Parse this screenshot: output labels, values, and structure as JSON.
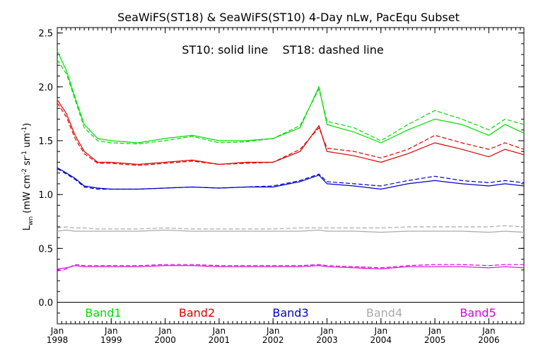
{
  "chart_data": {
    "type": "line",
    "title": "SeaWiFS(ST18) & SeaWiFS(ST10) 4-Day nLw, PacEqu Subset",
    "annotation": "ST10: solid line    ST18: dashed line",
    "ylabel": "L_wn (mW cm-2 sr-1 um-1)",
    "ylabel_main": "L",
    "ylabel_sub": "wn",
    "ylabel_rest": " (mW cm",
    "ylabel_sup1": "-2",
    "ylabel_mid": " sr",
    "ylabel_sup2": "-1",
    "ylabel_mid2": " um",
    "ylabel_sup3": "-1",
    "ylabel_end": ")",
    "xlabel": "",
    "ylim": [
      -0.2,
      2.55
    ],
    "xlim": [
      1998.0,
      2006.65
    ],
    "y_ticks": [
      0.0,
      0.5,
      1.0,
      1.5,
      2.0,
      2.5
    ],
    "y_tick_labels": [
      "0.0",
      "0.5",
      "1.0",
      "1.5",
      "2.0",
      "2.5"
    ],
    "x_ticks": [
      1998,
      1999,
      2000,
      2001,
      2002,
      2003,
      2004,
      2005,
      2006
    ],
    "x_tick_month": "Jan",
    "x_tick_years": [
      "1998",
      "1999",
      "2000",
      "2001",
      "2002",
      "2003",
      "2004",
      "2005",
      "2006"
    ],
    "grid": false,
    "legend_placement": "bottom",
    "colors": {
      "Band1": "#00dd00",
      "Band2": "#dd0000",
      "Band3": "#0000cc",
      "Band4": "#aaaaaa",
      "Band5": "#dd00dd",
      "axis": "#000000"
    },
    "series": [
      {
        "name": "Band1",
        "color": "#00dd00",
        "x": [
          1998.0,
          1998.17,
          1998.33,
          1998.5,
          1998.75,
          1999.0,
          1999.5,
          2000.0,
          2000.5,
          2001.0,
          2001.5,
          2002.0,
          2002.5,
          2002.85,
          2003.0,
          2003.5,
          2004.0,
          2004.5,
          2005.0,
          2005.5,
          2006.0,
          2006.3,
          2006.65
        ],
        "st10": [
          2.33,
          2.15,
          1.9,
          1.65,
          1.52,
          1.5,
          1.48,
          1.52,
          1.55,
          1.5,
          1.5,
          1.52,
          1.62,
          2.0,
          1.65,
          1.58,
          1.48,
          1.6,
          1.7,
          1.65,
          1.55,
          1.65,
          1.57
        ],
        "st18": [
          2.25,
          2.12,
          1.88,
          1.62,
          1.5,
          1.48,
          1.47,
          1.5,
          1.54,
          1.48,
          1.49,
          1.52,
          1.64,
          1.98,
          1.68,
          1.62,
          1.5,
          1.65,
          1.78,
          1.7,
          1.6,
          1.7,
          1.65
        ]
      },
      {
        "name": "Band2",
        "color": "#dd0000",
        "x": [
          1998.0,
          1998.17,
          1998.33,
          1998.5,
          1998.75,
          1999.0,
          1999.5,
          2000.0,
          2000.5,
          2001.0,
          2001.5,
          2002.0,
          2002.5,
          2002.85,
          2003.0,
          2003.5,
          2004.0,
          2004.5,
          2005.0,
          2005.5,
          2006.0,
          2006.3,
          2006.65
        ],
        "st10": [
          1.88,
          1.75,
          1.55,
          1.4,
          1.3,
          1.3,
          1.28,
          1.3,
          1.32,
          1.28,
          1.3,
          1.3,
          1.4,
          1.64,
          1.4,
          1.36,
          1.3,
          1.38,
          1.48,
          1.42,
          1.35,
          1.42,
          1.37
        ],
        "st18": [
          1.85,
          1.72,
          1.52,
          1.38,
          1.29,
          1.29,
          1.27,
          1.29,
          1.31,
          1.28,
          1.29,
          1.3,
          1.42,
          1.62,
          1.43,
          1.4,
          1.34,
          1.42,
          1.55,
          1.48,
          1.42,
          1.48,
          1.42
        ]
      },
      {
        "name": "Band3",
        "color": "#0000cc",
        "x": [
          1998.0,
          1998.17,
          1998.33,
          1998.5,
          1998.75,
          1999.0,
          1999.5,
          2000.0,
          2000.5,
          2001.0,
          2001.5,
          2002.0,
          2002.5,
          2002.85,
          2003.0,
          2003.5,
          2004.0,
          2004.5,
          2005.0,
          2005.5,
          2006.0,
          2006.3,
          2006.65
        ],
        "st10": [
          1.25,
          1.2,
          1.15,
          1.08,
          1.06,
          1.05,
          1.05,
          1.06,
          1.07,
          1.06,
          1.07,
          1.07,
          1.12,
          1.18,
          1.1,
          1.08,
          1.05,
          1.1,
          1.13,
          1.1,
          1.08,
          1.1,
          1.08
        ],
        "st18": [
          1.24,
          1.19,
          1.14,
          1.07,
          1.05,
          1.05,
          1.05,
          1.06,
          1.07,
          1.06,
          1.07,
          1.08,
          1.13,
          1.19,
          1.12,
          1.1,
          1.08,
          1.13,
          1.17,
          1.13,
          1.11,
          1.13,
          1.11
        ]
      },
      {
        "name": "Band4",
        "color": "#aaaaaa",
        "x": [
          1998.0,
          1998.17,
          1998.33,
          1998.5,
          1998.75,
          1999.0,
          1999.5,
          2000.0,
          2000.5,
          2001.0,
          2001.5,
          2002.0,
          2002.5,
          2002.85,
          2003.0,
          2003.5,
          2004.0,
          2004.5,
          2005.0,
          2005.5,
          2006.0,
          2006.3,
          2006.65
        ],
        "st10": [
          0.66,
          0.67,
          0.66,
          0.66,
          0.66,
          0.66,
          0.66,
          0.67,
          0.66,
          0.66,
          0.66,
          0.66,
          0.66,
          0.67,
          0.66,
          0.66,
          0.65,
          0.66,
          0.66,
          0.66,
          0.65,
          0.66,
          0.65
        ],
        "st18": [
          0.69,
          0.7,
          0.69,
          0.69,
          0.68,
          0.68,
          0.68,
          0.69,
          0.68,
          0.68,
          0.68,
          0.68,
          0.69,
          0.69,
          0.69,
          0.69,
          0.69,
          0.7,
          0.7,
          0.7,
          0.7,
          0.71,
          0.7
        ]
      },
      {
        "name": "Band5",
        "color": "#dd00dd",
        "x": [
          1998.0,
          1998.17,
          1998.33,
          1998.5,
          1998.75,
          1999.0,
          1999.5,
          2000.0,
          2000.5,
          2001.0,
          2001.5,
          2002.0,
          2002.5,
          2002.85,
          2003.0,
          2003.5,
          2004.0,
          2004.5,
          2005.0,
          2005.5,
          2006.0,
          2006.3,
          2006.65
        ],
        "st10": [
          0.31,
          0.32,
          0.34,
          0.33,
          0.33,
          0.33,
          0.33,
          0.34,
          0.34,
          0.33,
          0.33,
          0.33,
          0.33,
          0.34,
          0.33,
          0.32,
          0.31,
          0.33,
          0.33,
          0.33,
          0.32,
          0.33,
          0.32
        ],
        "st18": [
          0.29,
          0.31,
          0.35,
          0.34,
          0.34,
          0.34,
          0.34,
          0.35,
          0.35,
          0.34,
          0.34,
          0.34,
          0.34,
          0.35,
          0.34,
          0.33,
          0.32,
          0.34,
          0.35,
          0.35,
          0.34,
          0.35,
          0.35
        ]
      }
    ]
  }
}
